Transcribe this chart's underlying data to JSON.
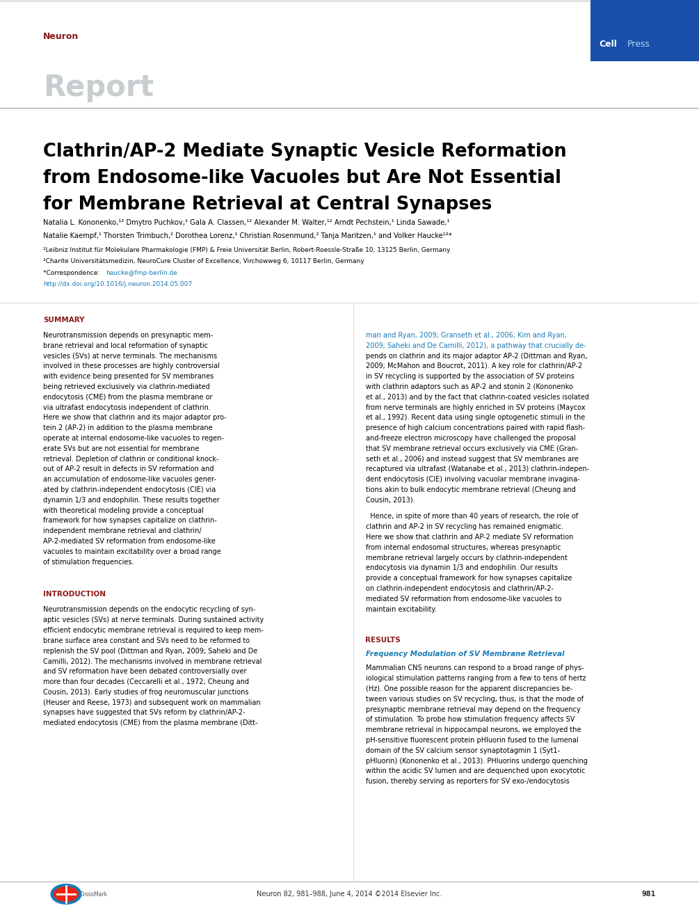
{
  "page_width": 10.05,
  "page_height": 13.05,
  "dpi": 100,
  "bg_color": "#ffffff",
  "header_bar_color": "#1a4faa",
  "neuron_label": "Neuron",
  "neuron_color": "#8b1a1a",
  "report_label": "Report",
  "report_color": "#c8cdd0",
  "title_line1": "Clathrin/AP-2 Mediate Synaptic Vesicle Reformation",
  "title_line2": "from Endosome-like Vacuoles but Are Not Essential",
  "title_line3": "for Membrane Retrieval at Central Synapses",
  "title_color": "#000000",
  "affil1": "¹Leibniz Institut für Molekulare Pharmakologie (FMP) & Freie Universität Berlin, Robert-Roessle-Straße 10, 13125 Berlin, Germany",
  "affil2": "²Charite Universitätsmedizin, NeuroCure Cluster of Excellence, Virchowweg 6, 10117 Berlin, Germany",
  "doi": "http://dx.doi.org/10.1016/j.neuron.2014.05.007",
  "link_color": "#1a7ab5",
  "summary_color": "#8b1a1a",
  "intro_color": "#8b1a1a",
  "results_color": "#8b1a1a",
  "freq_mod_color": "#1a7ab5",
  "footer_text": "Neuron 82, 981–988, June 4, 2014 ©2014 Elsevier Inc.",
  "footer_page": "981"
}
